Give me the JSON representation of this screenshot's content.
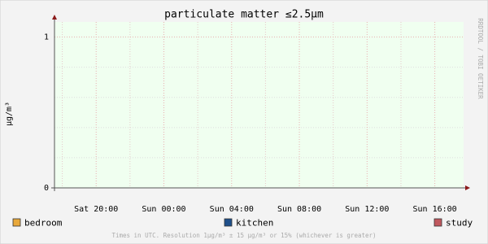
{
  "chart_data": {
    "type": "line",
    "title": "particulate matter ≤2.5µm",
    "ylabel": "µg/m³",
    "watermark": "RRDTOOL / TOBI OETIKER",
    "footer": "Times in UTC. Resolution 1µg/m³ ± 15 µg/m³ or 15% (whichever is greater)",
    "xlim": [
      -2.46,
      21.7
    ],
    "xticks": [
      {
        "value": 0,
        "label": "Sat 20:00"
      },
      {
        "value": 4,
        "label": "Sun 00:00"
      },
      {
        "value": 8,
        "label": "Sun 04:00"
      },
      {
        "value": 12,
        "label": "Sun 08:00"
      },
      {
        "value": 16,
        "label": "Sun 12:00"
      },
      {
        "value": 20,
        "label": "Sun 16:00"
      }
    ],
    "xminor": [
      -2,
      2,
      6,
      10,
      14,
      18
    ],
    "ylim": [
      0,
      1.1
    ],
    "yticks": [
      0,
      1
    ],
    "yminor": [
      0.2,
      0.4,
      0.6,
      0.8
    ],
    "grid": true,
    "series": [
      {
        "name": "bedroom",
        "color": "#e8a83a"
      },
      {
        "name": "kitchen",
        "color": "#1e4f8a"
      },
      {
        "name": "study",
        "color": "#c0585e"
      }
    ]
  }
}
